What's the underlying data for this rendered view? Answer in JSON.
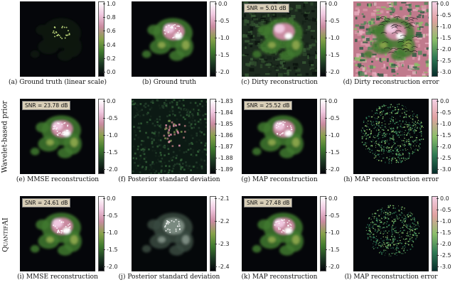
{
  "colors": {
    "cmap_main": [
      "#04040a",
      "#1d3a24",
      "#3f7a2e",
      "#86a24a",
      "#c98aa0",
      "#f0c8e0",
      "#ffffff"
    ],
    "cmap_err": [
      "#062c2a",
      "#2f7a54",
      "#8cbf6a",
      "#e0a0a0",
      "#f4d0e4"
    ],
    "snr_bg": "#d9cfb8"
  },
  "row_labels": [
    "Wavelet-based prior",
    "QuantifAI"
  ],
  "panels": [
    {
      "caption": "(a) Ground truth (linear scale)",
      "type": "truth_linear",
      "ticks": [
        "1.0",
        "0.8",
        "0.6",
        "0.4",
        "0.2",
        "0.0"
      ],
      "snr": ""
    },
    {
      "caption": "(b) Ground truth",
      "type": "truth",
      "ticks": [
        "0.0",
        "-0.5",
        "-1.0",
        "-1.5",
        "-2.0"
      ],
      "snr": ""
    },
    {
      "caption": "(c) Dirty reconstruction",
      "type": "dirty",
      "ticks": [
        "0.0",
        "-0.5",
        "-1.0",
        "-1.5",
        "-2.0"
      ],
      "snr": "SNR = 5.01 dB"
    },
    {
      "caption": "(d) Dirty reconstruction error",
      "type": "dirty_err",
      "ticks": [
        "0.0",
        "-0.5",
        "-1.0",
        "-1.5",
        "-2.0",
        "-2.5",
        "-3.0"
      ],
      "snr": ""
    },
    {
      "caption": "(e) MMSE reconstruction",
      "type": "recon",
      "ticks": [
        "0.0",
        "-0.5",
        "-1.0",
        "-1.5",
        "-2.0"
      ],
      "snr": "SNR = 23.78 dB"
    },
    {
      "caption": "(f) Posterior standard deviation",
      "type": "std_wave",
      "ticks": [
        "-1.83",
        "-1.84",
        "-1.85",
        "-1.86",
        "-1.87",
        "-1.88",
        "-1.89"
      ],
      "snr": ""
    },
    {
      "caption": "(g) MAP reconstruction",
      "type": "recon",
      "ticks": [
        "0.0",
        "-0.5",
        "-1.0",
        "-1.5",
        "-2.0"
      ],
      "snr": "SNR = 25.52 dB"
    },
    {
      "caption": "(h) MAP reconstruction error",
      "type": "err",
      "ticks": [
        "0.0",
        "-0.5",
        "-1.0",
        "-1.5",
        "-2.0",
        "-2.5",
        "-3.0"
      ],
      "snr": ""
    },
    {
      "caption": "(i) MMSE reconstruction",
      "type": "recon",
      "ticks": [
        "0.0",
        "-0.5",
        "-1.0",
        "-1.5",
        "-2.0"
      ],
      "snr": "SNR = 24.61 dB"
    },
    {
      "caption": "(j) Posterior standard deviation",
      "type": "std_q",
      "ticks": [
        "-2.1",
        "-2.2",
        "-2.3",
        "-2.4"
      ],
      "snr": ""
    },
    {
      "caption": "(k) MAP reconstruction",
      "type": "recon",
      "ticks": [
        "0.0",
        "-0.5",
        "-1.0",
        "-1.5",
        "-2.0"
      ],
      "snr": "SNR = 27.48 dB"
    },
    {
      "caption": "(l) MAP reconstruction error",
      "type": "err_q",
      "ticks": [
        "0.0",
        "-0.5",
        "-1.0",
        "-1.5",
        "-2.0",
        "-2.5",
        "-3.0"
      ],
      "snr": ""
    }
  ]
}
